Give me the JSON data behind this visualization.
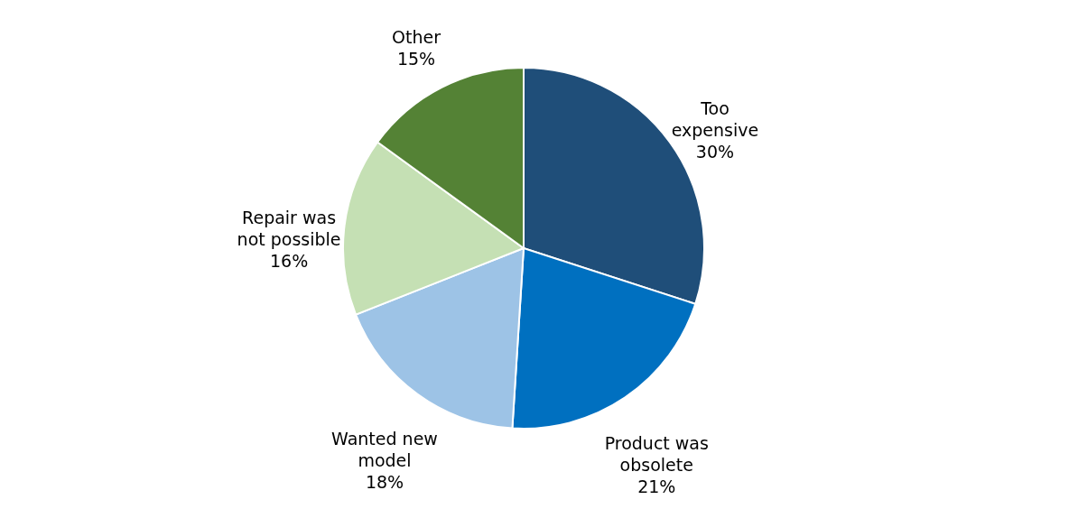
{
  "chart_data": {
    "type": "pie",
    "categories": [
      "Too expensive",
      "Product was obsolete",
      "Wanted new model",
      "Repair was not possible",
      "Other"
    ],
    "values": [
      30,
      21,
      18,
      16,
      15
    ],
    "value_labels": [
      "30%",
      "21%",
      "18%",
      "16%",
      "15%"
    ],
    "colors": [
      "#1f4e79",
      "#0070c0",
      "#9dc3e6",
      "#c5e0b4",
      "#548235"
    ],
    "legend": false
  }
}
